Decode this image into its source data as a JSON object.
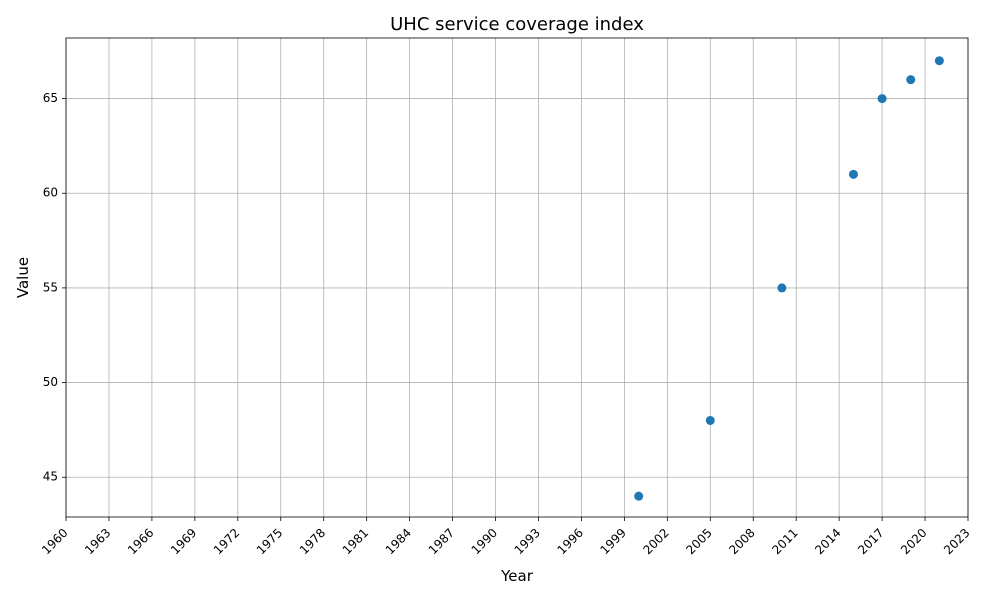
{
  "chart_data": {
    "type": "scatter",
    "title": "UHC service coverage index",
    "xlabel": "Year",
    "ylabel": "Value",
    "xlim": [
      1960,
      2023
    ],
    "ylim": [
      42.9,
      68.2
    ],
    "x_ticks": [
      1960,
      1963,
      1966,
      1969,
      1972,
      1975,
      1978,
      1981,
      1984,
      1987,
      1990,
      1993,
      1996,
      1999,
      2002,
      2005,
      2008,
      2011,
      2014,
      2017,
      2020,
      2023
    ],
    "y_ticks": [
      45,
      50,
      55,
      60,
      65
    ],
    "grid": true,
    "marker_color": "#1f77b4",
    "points": [
      {
        "x": 2000,
        "y": 44
      },
      {
        "x": 2005,
        "y": 48
      },
      {
        "x": 2010,
        "y": 55
      },
      {
        "x": 2015,
        "y": 61
      },
      {
        "x": 2017,
        "y": 65
      },
      {
        "x": 2019,
        "y": 66
      },
      {
        "x": 2021,
        "y": 67
      }
    ]
  }
}
